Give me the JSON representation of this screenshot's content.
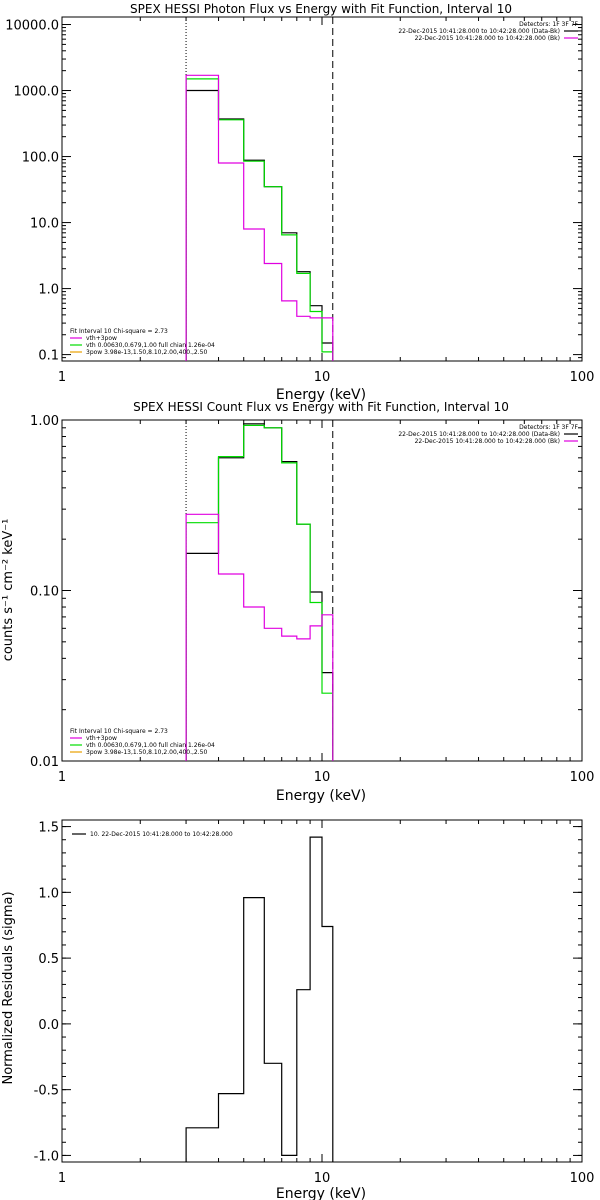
{
  "colors": {
    "data": "#000000",
    "total": "#00dd00",
    "thermal": "#e000e0",
    "powerlaw": "#e8a000"
  },
  "chart_data": [
    {
      "type": "line",
      "id": "photon",
      "title": "SPEX HESSI Photon Flux vs Energy with Fit Function, Interval 10",
      "xlabel": "Energy (keV)",
      "ylabel": "",
      "xscale": "log",
      "yscale": "log",
      "xlim": [
        1,
        100
      ],
      "ylim": [
        0.08,
        13000
      ],
      "xticks": [
        1,
        10,
        100
      ],
      "xtick_labels": [
        "1",
        "10",
        "100"
      ],
      "yticks": [
        0.1,
        1,
        10,
        100,
        1000,
        10000
      ],
      "ytick_labels": [
        "0.1",
        "1.0",
        "10.0",
        "100.0",
        "1000.0",
        "10000.0"
      ],
      "vlines": [
        {
          "x": 3,
          "style": "dotted"
        },
        {
          "x": 11,
          "style": "dashed"
        }
      ],
      "legend_top": {
        "position": "top-right",
        "header": "Detectors: 1F 3F 7F",
        "entries": [
          {
            "text": "22-Dec-2015 10:41:28.000 to 10:42:28.000 (Data-Bk)",
            "color": "data"
          },
          {
            "text": "22-Dec-2015 10:41:28.000 to 10:42:28.000 (Bk)",
            "color": "thermal"
          }
        ]
      },
      "legend_bottom": {
        "position": "bottom-left",
        "header": "Fit Interval 10   Chi-square = 2.73",
        "entries": [
          {
            "text": "vth+3pow",
            "color": "thermal"
          },
          {
            "text": "vth 0.00630,0.679,1.00  full chian 1.26e-04",
            "color": "total"
          },
          {
            "text": "3pow 3.98e-13,1.50,8.10,2.00,400.,2.50",
            "color": "powerlaw"
          }
        ]
      },
      "series": [
        {
          "color": "data",
          "edges": [
            3,
            4,
            5,
            6,
            7,
            8,
            9,
            10,
            11
          ],
          "values": [
            1000,
            370,
            88,
            35,
            7,
            1.8,
            0.55,
            0.15
          ]
        },
        {
          "color": "total",
          "edges": [
            3,
            4,
            5,
            6,
            7,
            8,
            9,
            10,
            11
          ],
          "values": [
            1500,
            360,
            85,
            35,
            6.5,
            1.7,
            0.45,
            0.11
          ]
        },
        {
          "color": "thermal",
          "edges": [
            3,
            4,
            5,
            6,
            7,
            8,
            9,
            10,
            11
          ],
          "values": [
            1700,
            80,
            8,
            2.4,
            0.65,
            0.38,
            0.36,
            0.36
          ]
        }
      ]
    },
    {
      "type": "line",
      "id": "count",
      "title": "SPEX HESSI Count Flux vs Energy with Fit Function, Interval 10",
      "xlabel": "Energy (keV)",
      "ylabel": "counts s⁻¹ cm⁻² keV⁻¹",
      "xscale": "log",
      "yscale": "log",
      "xlim": [
        1,
        100
      ],
      "ylim": [
        0.01,
        1.0
      ],
      "xticks": [
        1,
        10,
        100
      ],
      "xtick_labels": [
        "1",
        "10",
        "100"
      ],
      "yticks": [
        0.01,
        0.1,
        1.0
      ],
      "ytick_labels": [
        "0.01",
        "0.10",
        "1.00"
      ],
      "vlines": [
        {
          "x": 3,
          "style": "dotted"
        },
        {
          "x": 11,
          "style": "dashed"
        }
      ],
      "legend_top": {
        "position": "top-right",
        "header": "Detectors: 1F 3F 7F",
        "entries": [
          {
            "text": "22-Dec-2015 10:41:28.000 to 10:42:28.000 (Data-Bk)",
            "color": "data"
          },
          {
            "text": "22-Dec-2015 10:41:28.000 to 10:42:28.000 (Bk)",
            "color": "thermal"
          }
        ]
      },
      "legend_bottom": {
        "position": "bottom-left",
        "header": "Fit Interval 10   Chi-square = 2.73",
        "entries": [
          {
            "text": "vth+3pow",
            "color": "thermal"
          },
          {
            "text": "vth 0.00630,0.679,1.00  full chian 1.26e-04",
            "color": "total"
          },
          {
            "text": "3pow 3.98e-13,1.50,8.10,2.00,400.,2.50",
            "color": "powerlaw"
          }
        ]
      },
      "series": [
        {
          "color": "data",
          "edges": [
            3,
            4,
            5,
            6,
            7,
            8,
            9,
            10,
            11
          ],
          "values": [
            0.165,
            0.6,
            0.95,
            0.9,
            0.57,
            0.245,
            0.098,
            0.033
          ]
        },
        {
          "color": "total",
          "edges": [
            3,
            4,
            5,
            6,
            7,
            8,
            9,
            10,
            11
          ],
          "values": [
            0.25,
            0.61,
            0.93,
            0.9,
            0.56,
            0.245,
            0.085,
            0.025
          ]
        },
        {
          "color": "thermal",
          "edges": [
            3,
            4,
            5,
            6,
            7,
            8,
            9,
            10,
            11
          ],
          "values": [
            0.28,
            0.125,
            0.08,
            0.06,
            0.054,
            0.052,
            0.062,
            0.072
          ]
        }
      ]
    },
    {
      "type": "line",
      "id": "residuals",
      "title": "",
      "xlabel": "Energy (keV)",
      "ylabel": "Normalized Residuals (sigma)",
      "xscale": "log",
      "yscale": "linear",
      "xlim": [
        1,
        100
      ],
      "ylim": [
        -1.05,
        1.55
      ],
      "xticks": [
        1,
        10,
        100
      ],
      "xtick_labels": [
        "1",
        "10",
        "100"
      ],
      "yticks": [
        -1.0,
        -0.5,
        0.0,
        0.5,
        1.0,
        1.5
      ],
      "ytick_labels": [
        "-1.0",
        "-0.5",
        "0.0",
        "0.5",
        "1.0",
        "1.5"
      ],
      "vlines": [],
      "legend_top": {
        "position": "top-left",
        "header": "",
        "entries": [
          {
            "text": "10. 22-Dec-2015 10:41:28.000 to 10:42:28.000",
            "color": "data"
          }
        ]
      },
      "series": [
        {
          "color": "data",
          "edges": [
            3,
            4,
            5,
            6,
            7,
            8,
            9,
            10,
            11
          ],
          "values": [
            -0.79,
            -0.53,
            0.96,
            -0.3,
            -1.0,
            0.26,
            1.42,
            0.74
          ]
        }
      ]
    }
  ]
}
